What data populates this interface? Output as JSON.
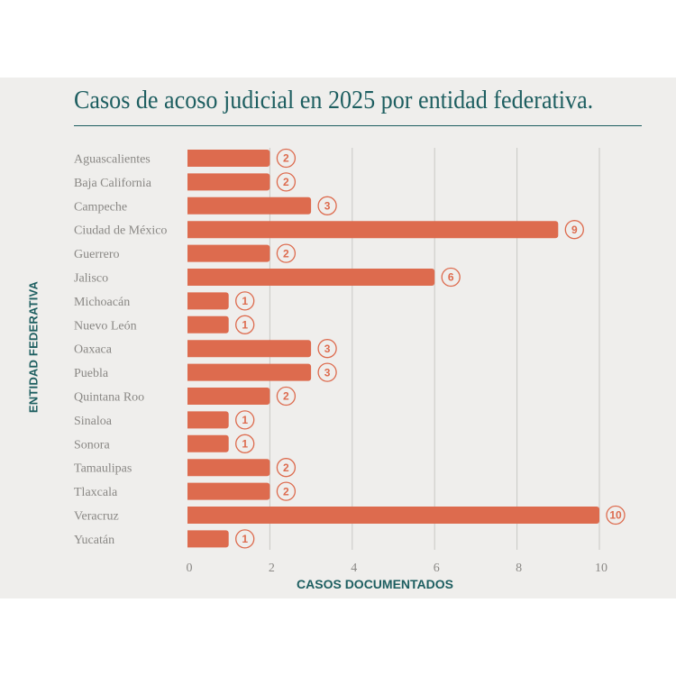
{
  "chart_data": {
    "type": "bar",
    "orientation": "horizontal",
    "title": "Casos de acoso judicial en 2025 por entidad federativa.",
    "xlabel": "CASOS DOCUMENTADOS",
    "ylabel": "ENTIDAD FEDERATIVA",
    "categories": [
      "Aguascalientes",
      "Baja California",
      "Campeche",
      "Ciudad de México",
      "Guerrero",
      "Jalisco",
      "Michoacán",
      "Nuevo León",
      "Oaxaca",
      "Puebla",
      "Quintana Roo",
      "Sinaloa",
      "Sonora",
      "Tamaulipas",
      "Tlaxcala",
      "Veracruz",
      "Yucatán"
    ],
    "values": [
      2,
      2,
      3,
      9,
      2,
      6,
      1,
      1,
      3,
      3,
      2,
      1,
      1,
      2,
      2,
      10,
      1
    ],
    "xlim": [
      0,
      10
    ],
    "xticks": [
      "0",
      "2",
      "4",
      "6",
      "8",
      "10"
    ],
    "grid": true,
    "data_labels": true,
    "colors": {
      "bar": "#dd6b4e",
      "text": "#1d5e60",
      "muted": "#8a8885",
      "grid": "#c9c8c5",
      "background": "#efeeec"
    }
  }
}
